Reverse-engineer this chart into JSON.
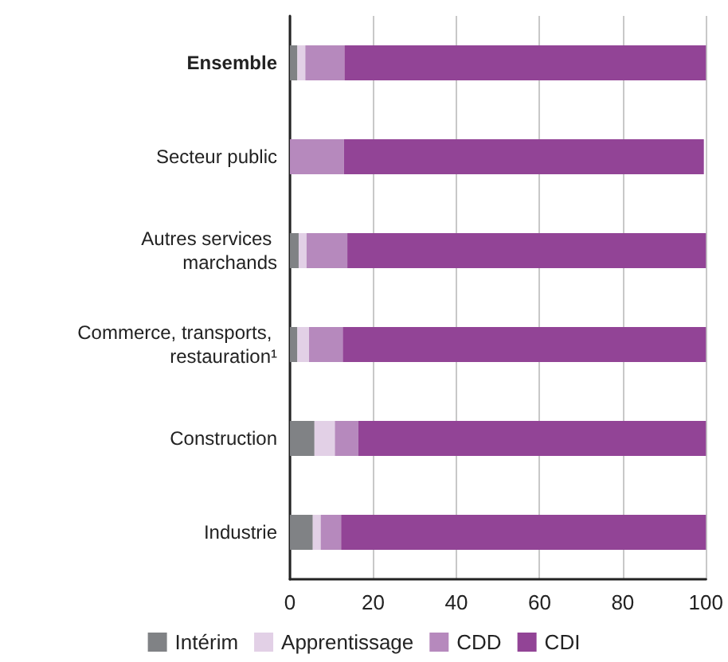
{
  "chart_data": {
    "type": "bar",
    "orientation": "horizontal",
    "stacked": true,
    "categories": [
      "Ensemble",
      "Secteur public",
      "Autres services marchands",
      "Commerce, transports, restauration¹",
      "Construction",
      "Industrie"
    ],
    "series": [
      {
        "name": "Intérim",
        "color": "#808285",
        "values": [
          1.8,
          0,
          2.1,
          1.8,
          5.9,
          5.5
        ]
      },
      {
        "name": "Apprentissage",
        "color": "#e2d0e6",
        "values": [
          1.9,
          0,
          1.9,
          2.8,
          4.9,
          1.9
        ]
      },
      {
        "name": "CDD",
        "color": "#b689bd",
        "values": [
          9.4,
          13,
          9.8,
          8.1,
          5.6,
          4.9
        ]
      },
      {
        "name": "CDI",
        "color": "#924496",
        "values": [
          87,
          86.5,
          86.2,
          87.3,
          83.6,
          87.7
        ]
      }
    ],
    "xlim": [
      0,
      100
    ],
    "xticks": [
      0,
      20,
      40,
      60,
      80,
      100
    ],
    "grid": "x",
    "legend": "bottom"
  }
}
